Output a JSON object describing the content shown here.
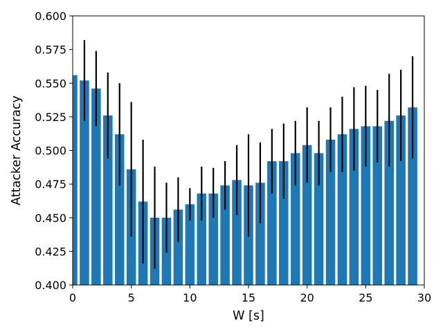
{
  "chart_data": {
    "type": "bar",
    "title": "",
    "xlabel": "W [s]",
    "ylabel": "Attacker Accuracy",
    "xlim": [
      0,
      30
    ],
    "ylim": [
      0.4,
      0.6
    ],
    "grid": false,
    "bar_color": "#1f77b4",
    "error_bar_color": "#000000",
    "x": [
      0,
      1,
      2,
      3,
      4,
      5,
      6,
      7,
      8,
      9,
      10,
      11,
      12,
      13,
      14,
      15,
      16,
      17,
      18,
      19,
      20,
      21,
      22,
      23,
      24,
      25,
      26,
      27,
      28,
      29
    ],
    "values": [
      0.556,
      0.552,
      0.546,
      0.526,
      0.512,
      0.486,
      0.462,
      0.45,
      0.45,
      0.456,
      0.46,
      0.468,
      0.468,
      0.474,
      0.478,
      0.474,
      0.476,
      0.492,
      0.492,
      0.498,
      0.504,
      0.498,
      0.508,
      0.512,
      0.516,
      0.518,
      0.518,
      0.522,
      0.526,
      0.532
    ],
    "error_low": [
      null,
      0.522,
      0.518,
      0.494,
      0.474,
      0.436,
      0.416,
      0.412,
      0.424,
      0.432,
      0.448,
      0.448,
      0.45,
      0.456,
      0.452,
      0.436,
      0.446,
      0.468,
      0.464,
      0.474,
      0.476,
      0.474,
      0.484,
      0.484,
      0.485,
      0.488,
      0.491,
      0.488,
      0.492,
      0.494
    ],
    "error_high": [
      null,
      0.582,
      0.574,
      0.558,
      0.55,
      0.536,
      0.508,
      0.488,
      0.476,
      0.48,
      0.472,
      0.488,
      0.487,
      0.492,
      0.504,
      0.512,
      0.506,
      0.516,
      0.52,
      0.522,
      0.532,
      0.522,
      0.532,
      0.54,
      0.547,
      0.548,
      0.545,
      0.557,
      0.56,
      0.57
    ],
    "xticks": [
      "0",
      "5",
      "10",
      "15",
      "20",
      "25",
      "30"
    ],
    "yticks": [
      "0.400",
      "0.425",
      "0.450",
      "0.475",
      "0.500",
      "0.525",
      "0.550",
      "0.575",
      "0.600"
    ]
  }
}
